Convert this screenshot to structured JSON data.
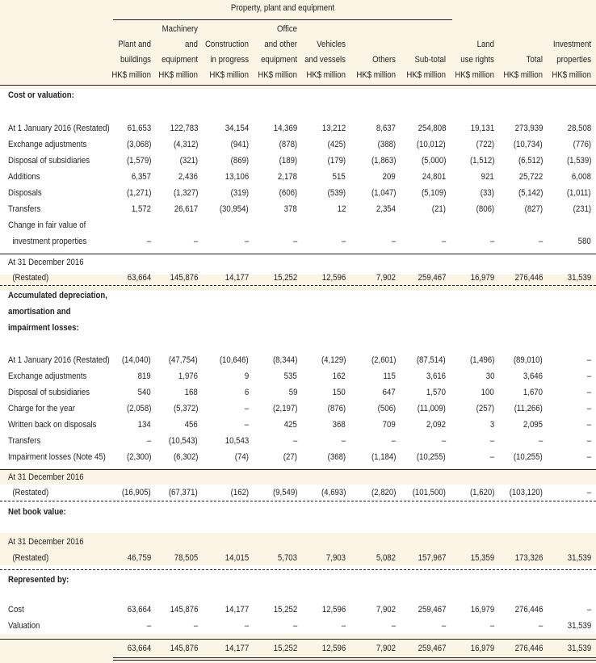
{
  "title": "Property, plant and equipment",
  "columns": [
    [
      "Plant and",
      "buildings",
      "HK$ million"
    ],
    [
      "Machinery",
      "and",
      "equipment",
      "HK$ million"
    ],
    [
      "Construction",
      "in progress",
      "HK$ million"
    ],
    [
      "Office",
      "and other",
      "equipment",
      "HK$ million"
    ],
    [
      "Vehicles",
      "and vessels",
      "HK$ million"
    ],
    [
      "Others",
      "HK$ million"
    ],
    [
      "Sub-total",
      "HK$ million"
    ],
    [
      "Land",
      "use rights",
      "HK$ million"
    ],
    [
      "Total",
      "HK$ million"
    ],
    [
      "Investment",
      "properties",
      "HK$ million"
    ]
  ],
  "sections": {
    "cost": "Cost or valuation:",
    "dep1": "Accumulated depreciation,",
    "dep2": "amortisation and",
    "dep3": "impairment losses:",
    "nbv": "Net book value:",
    "rep": "Represented by:"
  },
  "rows": [
    {
      "label": "At 1 January 2016 (Restated)",
      "v": [
        "61,653",
        "122,783",
        "34,154",
        "14,369",
        "13,212",
        "8,637",
        "254,808",
        "19,131",
        "273,939",
        "28,508"
      ]
    },
    {
      "label": "Exchange adjustments",
      "v": [
        "(3,068)",
        "(4,312)",
        "(941)",
        "(878)",
        "(425)",
        "(388)",
        "(10,012)",
        "(722)",
        "(10,734)",
        "(776)"
      ]
    },
    {
      "label": "Disposal of subsidiaries",
      "v": [
        "(1,579)",
        "(321)",
        "(869)",
        "(189)",
        "(179)",
        "(1,863)",
        "(5,000)",
        "(1,512)",
        "(6,512)",
        "(1,539)"
      ]
    },
    {
      "label": "Additions",
      "v": [
        "6,357",
        "2,436",
        "13,106",
        "2,178",
        "515",
        "209",
        "24,801",
        "921",
        "25,722",
        "6,008"
      ]
    },
    {
      "label": "Disposals",
      "v": [
        "(1,271)",
        "(1,327)",
        "(319)",
        "(606)",
        "(539)",
        "(1,047)",
        "(5,109)",
        "(33)",
        "(5,142)",
        "(1,011)"
      ]
    },
    {
      "label": "Transfers",
      "v": [
        "1,572",
        "26,617",
        "(30,954)",
        "378",
        "12",
        "2,354",
        "(21)",
        "(806)",
        "(827)",
        "(231)"
      ]
    },
    {
      "label": "Change in fair value of",
      "v": [
        "",
        "",
        "",
        "",
        "",
        "",
        "",
        "",
        "",
        ""
      ]
    },
    {
      "label": "  investment properties",
      "v": [
        "–",
        "–",
        "–",
        "–",
        "–",
        "–",
        "–",
        "–",
        "–",
        "580"
      ]
    },
    {
      "label": "At 31 December 2016",
      "v": [
        "",
        "",
        "",
        "",
        "",
        "",
        "",
        "",
        "",
        ""
      ]
    },
    {
      "label": "  (Restated)",
      "v": [
        "63,664",
        "145,876",
        "14,177",
        "15,252",
        "12,596",
        "7,902",
        "259,467",
        "16,979",
        "276,446",
        "31,539"
      ]
    },
    {
      "label": "At 1 January 2016 (Restated)",
      "v": [
        "(14,040)",
        "(47,754)",
        "(10,646)",
        "(8,344)",
        "(4,129)",
        "(2,601)",
        "(87,514)",
        "(1,496)",
        "(89,010)",
        "–"
      ]
    },
    {
      "label": "Exchange adjustments",
      "v": [
        "819",
        "1,976",
        "9",
        "535",
        "162",
        "115",
        "3,616",
        "30",
        "3,646",
        "–"
      ]
    },
    {
      "label": "Disposal of subsidiaries",
      "v": [
        "540",
        "168",
        "6",
        "59",
        "150",
        "647",
        "1,570",
        "100",
        "1,670",
        "–"
      ]
    },
    {
      "label": "Charge for the year",
      "v": [
        "(2,058)",
        "(5,372)",
        "–",
        "(2,197)",
        "(876)",
        "(506)",
        "(11,009)",
        "(257)",
        "(11,266)",
        "–"
      ]
    },
    {
      "label": "Written back on disposals",
      "v": [
        "134",
        "456",
        "–",
        "425",
        "368",
        "709",
        "2,092",
        "3",
        "2,095",
        "–"
      ]
    },
    {
      "label": "Transfers",
      "v": [
        "–",
        "(10,543)",
        "10,543",
        "–",
        "–",
        "–",
        "–",
        "–",
        "–",
        "–"
      ]
    },
    {
      "label": "Impairment losses (Note 45)",
      "v": [
        "(2,300)",
        "(6,302)",
        "(74)",
        "(27)",
        "(368)",
        "(1,184)",
        "(10,255)",
        "–",
        "(10,255)",
        "–"
      ]
    },
    {
      "label": "At 31 December 2016",
      "v": [
        "",
        "",
        "",
        "",
        "",
        "",
        "",
        "",
        "",
        ""
      ]
    },
    {
      "label": "  (Restated)",
      "v": [
        "(16,905)",
        "(67,371)",
        "(162)",
        "(9,549)",
        "(4,693)",
        "(2,820)",
        "(101,500)",
        "(1,620)",
        "(103,120)",
        "–"
      ]
    },
    {
      "label": "At 31 December 2016",
      "v": [
        "",
        "",
        "",
        "",
        "",
        "",
        "",
        "",
        "",
        ""
      ]
    },
    {
      "label": "  (Restated)",
      "v": [
        "46,759",
        "78,505",
        "14,015",
        "5,703",
        "7,903",
        "5,082",
        "157,967",
        "15,359",
        "173,326",
        "31,539"
      ]
    },
    {
      "label": "Cost",
      "v": [
        "63,664",
        "145,876",
        "14,177",
        "15,252",
        "12,596",
        "7,902",
        "259,467",
        "16,979",
        "276,446",
        "–"
      ]
    },
    {
      "label": "Valuation",
      "v": [
        "–",
        "–",
        "–",
        "–",
        "–",
        "–",
        "–",
        "–",
        "–",
        "31,539"
      ]
    },
    {
      "label": "",
      "v": [
        "63,664",
        "145,876",
        "14,177",
        "15,252",
        "12,596",
        "7,902",
        "259,467",
        "16,979",
        "276,446",
        "31,539"
      ]
    }
  ]
}
